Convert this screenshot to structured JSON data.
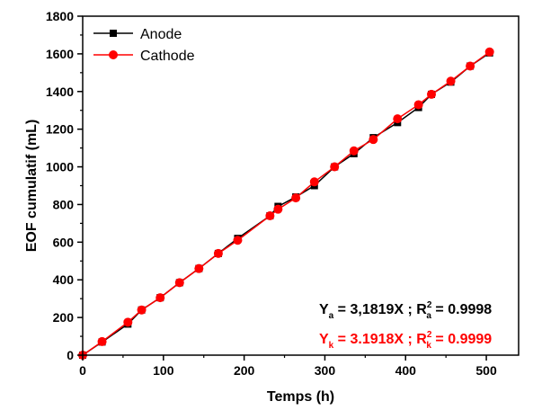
{
  "chart_data": {
    "type": "line",
    "xlabel": "Temps (h)",
    "ylabel": "EOF cumulatif (mL)",
    "xlim": [
      0,
      540
    ],
    "ylim": [
      0,
      1800
    ],
    "x_ticks": [
      0,
      100,
      200,
      300,
      400,
      500
    ],
    "y_ticks": [
      0,
      200,
      400,
      600,
      800,
      1000,
      1200,
      1400,
      1600,
      1800
    ],
    "legend_position": "top-left",
    "series": [
      {
        "name": "Anode",
        "color": "#000000",
        "marker": "square",
        "points": [
          [
            0,
            0
          ],
          [
            24,
            70
          ],
          [
            56,
            165
          ],
          [
            73,
            240
          ],
          [
            96,
            305
          ],
          [
            120,
            385
          ],
          [
            144,
            460
          ],
          [
            168,
            540
          ],
          [
            192,
            620
          ],
          [
            232,
            740
          ],
          [
            242,
            790
          ],
          [
            264,
            840
          ],
          [
            287,
            900
          ],
          [
            312,
            1000
          ],
          [
            336,
            1070
          ],
          [
            360,
            1155
          ],
          [
            390,
            1235
          ],
          [
            416,
            1315
          ],
          [
            432,
            1385
          ],
          [
            456,
            1450
          ],
          [
            480,
            1535
          ],
          [
            504,
            1605
          ]
        ]
      },
      {
        "name": "Cathode",
        "color": "#ff0000",
        "marker": "circle",
        "points": [
          [
            0,
            0
          ],
          [
            24,
            72
          ],
          [
            56,
            175
          ],
          [
            73,
            240
          ],
          [
            96,
            305
          ],
          [
            120,
            385
          ],
          [
            144,
            460
          ],
          [
            168,
            540
          ],
          [
            192,
            610
          ],
          [
            232,
            740
          ],
          [
            242,
            775
          ],
          [
            264,
            835
          ],
          [
            287,
            920
          ],
          [
            312,
            1000
          ],
          [
            336,
            1085
          ],
          [
            360,
            1145
          ],
          [
            390,
            1255
          ],
          [
            416,
            1330
          ],
          [
            432,
            1385
          ],
          [
            456,
            1455
          ],
          [
            480,
            1535
          ],
          [
            504,
            1610
          ]
        ]
      }
    ],
    "annotations": [
      {
        "color": "#000000",
        "parts": [
          {
            "t": "Y",
            "s": "n"
          },
          {
            "t": "a",
            "s": "sub"
          },
          {
            "t": " = 3,1819X ; R",
            "s": "n"
          },
          {
            "t": "2",
            "s": "sup"
          },
          {
            "t": "a",
            "s": "sub"
          },
          {
            "t": " = 0.9998",
            "s": "n"
          }
        ]
      },
      {
        "color": "#ff0000",
        "parts": [
          {
            "t": "Y",
            "s": "n"
          },
          {
            "t": "k",
            "s": "sub"
          },
          {
            "t": " = 3.1918X ; R",
            "s": "n"
          },
          {
            "t": "2",
            "s": "sup"
          },
          {
            "t": "k",
            "s": "sub"
          },
          {
            "t": " = 0.9999",
            "s": "n"
          }
        ]
      }
    ]
  }
}
